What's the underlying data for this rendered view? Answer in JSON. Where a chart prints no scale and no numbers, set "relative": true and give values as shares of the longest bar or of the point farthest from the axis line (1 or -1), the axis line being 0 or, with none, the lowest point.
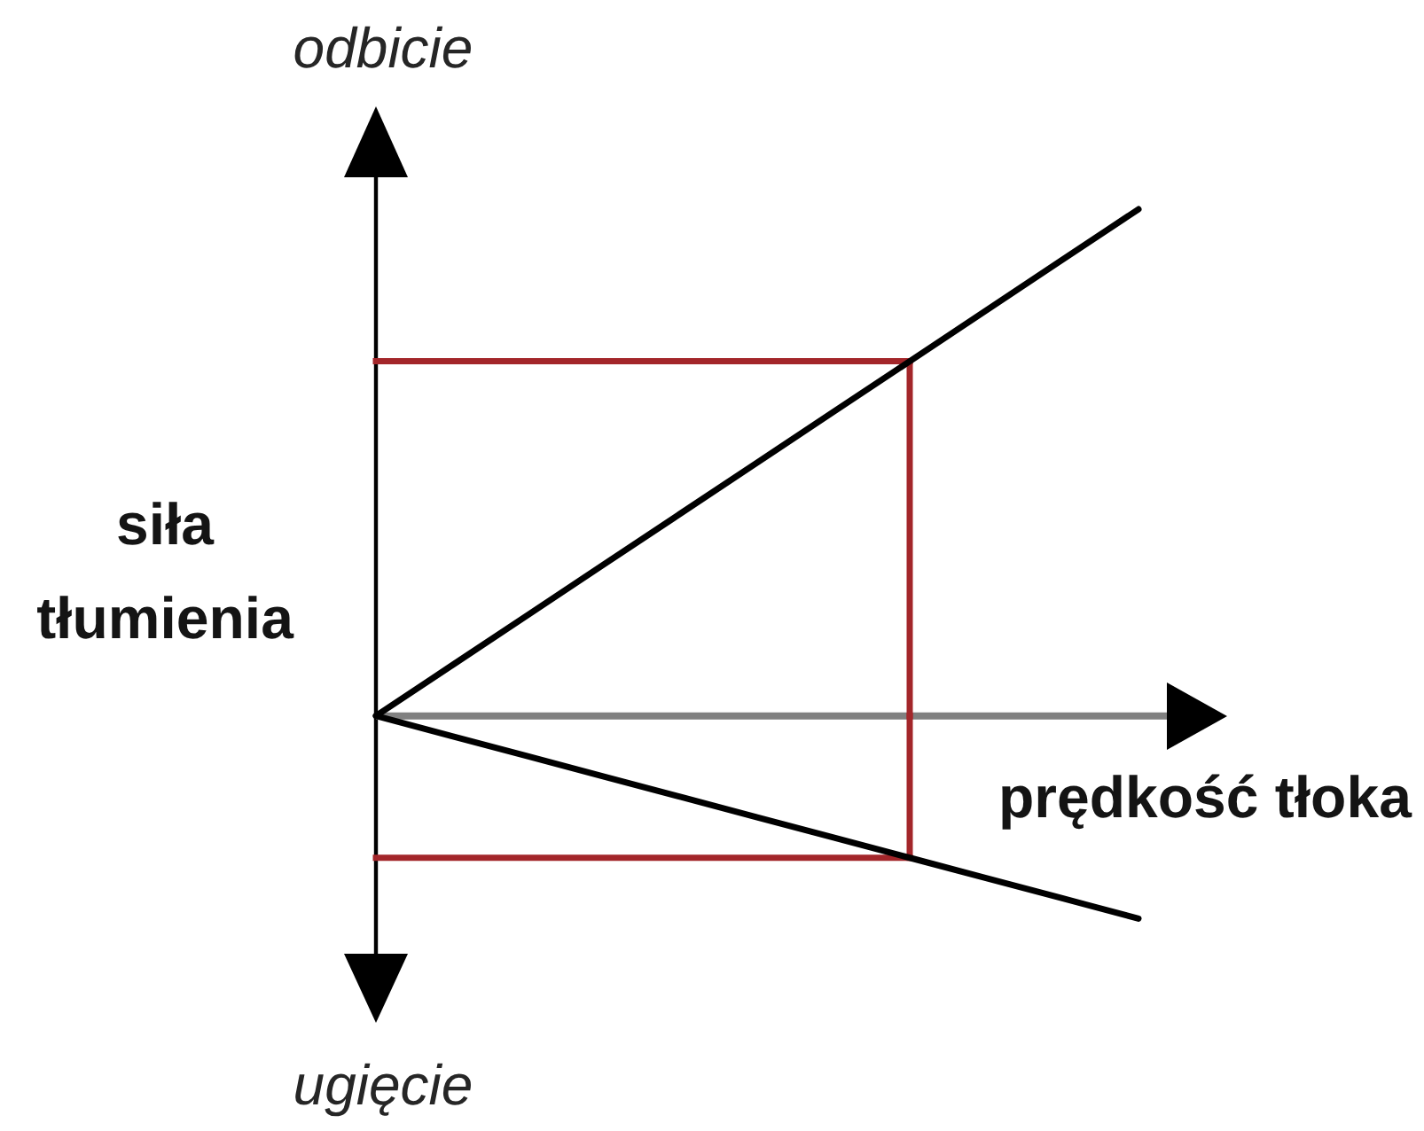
{
  "chart_data": {
    "type": "line",
    "relative": true,
    "xlabel": "prędkość tłoka",
    "ylabel": "siła tłumienia",
    "annotations": [
      "odbicie",
      "ugięcie"
    ],
    "marker": "none",
    "line_style": "solid",
    "categories": [
      null,
      null,
      null,
      null,
      null,
      null,
      null,
      null,
      null,
      null,
      null
    ],
    "series": [
      {
        "color": "#000000",
        "values": [
          0,
          0.1,
          0.2,
          0.3,
          0.4,
          0.5,
          0.6,
          0.7,
          0.8,
          0.9,
          1
        ]
      },
      {
        "color": "#000000",
        "values": [
          0,
          -0.04,
          -0.08,
          -0.12,
          -0.16,
          -0.2,
          -0.24,
          -0.28,
          -0.32,
          -0.36,
          -0.4
        ]
      }
    ],
    "ref_lines": [
      {
        "axis": "y",
        "value": 0.7,
        "color": "#a3262a"
      },
      {
        "axis": "y",
        "value": -0.28,
        "color": "#a3262a"
      }
    ]
  }
}
